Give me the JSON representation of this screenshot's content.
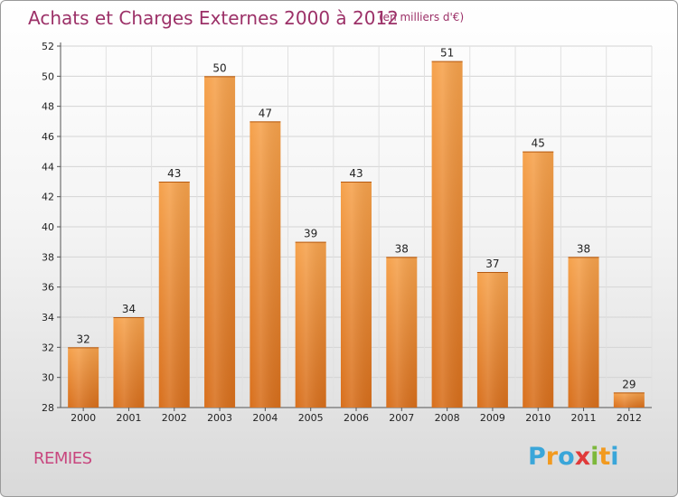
{
  "header": {
    "title": "Achats et Charges Externes 2000 à 2012",
    "subtitle": "(en milliers d'€)"
  },
  "footer": {
    "commune": "REMIES",
    "logo_letters": [
      "P",
      "r",
      "o",
      "x",
      "i",
      "t",
      "i"
    ],
    "logo_colors": [
      "#3aa6d9",
      "#f29a1f",
      "#3aa6d9",
      "#e03a3a",
      "#7cb83b",
      "#f29a1f",
      "#3aa6d9"
    ]
  },
  "chart_data": {
    "type": "bar",
    "categories": [
      "2000",
      "2001",
      "2002",
      "2003",
      "2004",
      "2005",
      "2006",
      "2007",
      "2008",
      "2009",
      "2010",
      "2011",
      "2012"
    ],
    "values": [
      32,
      34,
      43,
      50,
      47,
      39,
      43,
      38,
      51,
      37,
      45,
      38,
      29
    ],
    "title": "Achats et Charges Externes 2000 à 2012",
    "ylim": [
      28,
      52
    ],
    "yticks": [
      28,
      30,
      32,
      34,
      36,
      38,
      40,
      42,
      44,
      46,
      48,
      50,
      52
    ],
    "grid": true,
    "bar_color": "#f29a43"
  }
}
